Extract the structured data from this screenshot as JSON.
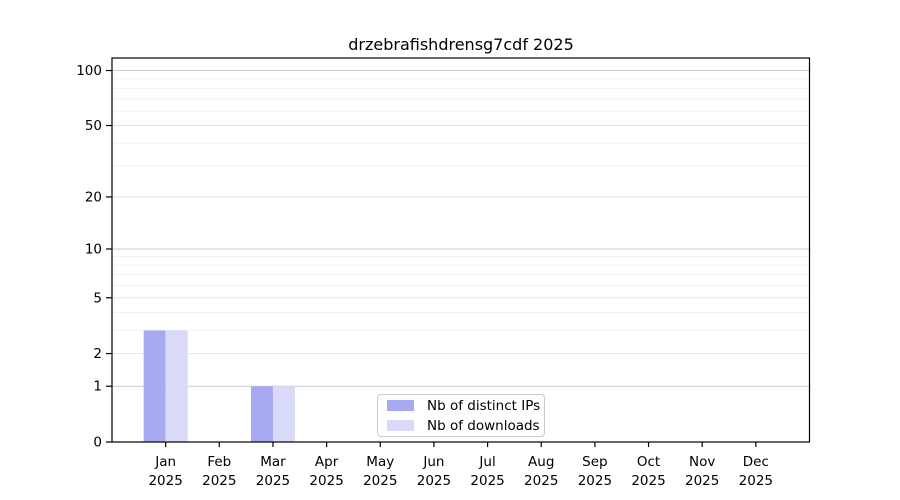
{
  "chart_data": {
    "type": "bar",
    "title": "drzebrafishdrensg7cdf 2025",
    "categories": [
      "Jan",
      "Feb",
      "Mar",
      "Apr",
      "May",
      "Jun",
      "Jul",
      "Aug",
      "Sep",
      "Oct",
      "Nov",
      "Dec"
    ],
    "category_year": "2025",
    "series": [
      {
        "name": "Nb of distinct IPs",
        "color": "#a9a9f3",
        "values": [
          3,
          0,
          1,
          0,
          0,
          0,
          0,
          0,
          0,
          0,
          0,
          0
        ]
      },
      {
        "name": "Nb of downloads",
        "color": "#d9d9f8",
        "values": [
          3,
          0,
          1,
          0,
          0,
          0,
          0,
          0,
          0,
          0,
          0,
          0
        ]
      }
    ],
    "yscale": "log1p",
    "ylim": [
      0,
      117
    ],
    "yticks_major": [
      0,
      1,
      2,
      5,
      10,
      20,
      50,
      100
    ],
    "yticks_minor": [
      3,
      4,
      6,
      7,
      8,
      9,
      30,
      40,
      60,
      70,
      80,
      90
    ],
    "grid": "horizontal",
    "legend_position": "lower-center",
    "colors": {
      "axis": "#000000",
      "grid_pow10": "#cccccc",
      "grid_labeled": "#e3e3e3",
      "grid_minor": "#f0f0f0",
      "background": "#ffffff"
    }
  }
}
